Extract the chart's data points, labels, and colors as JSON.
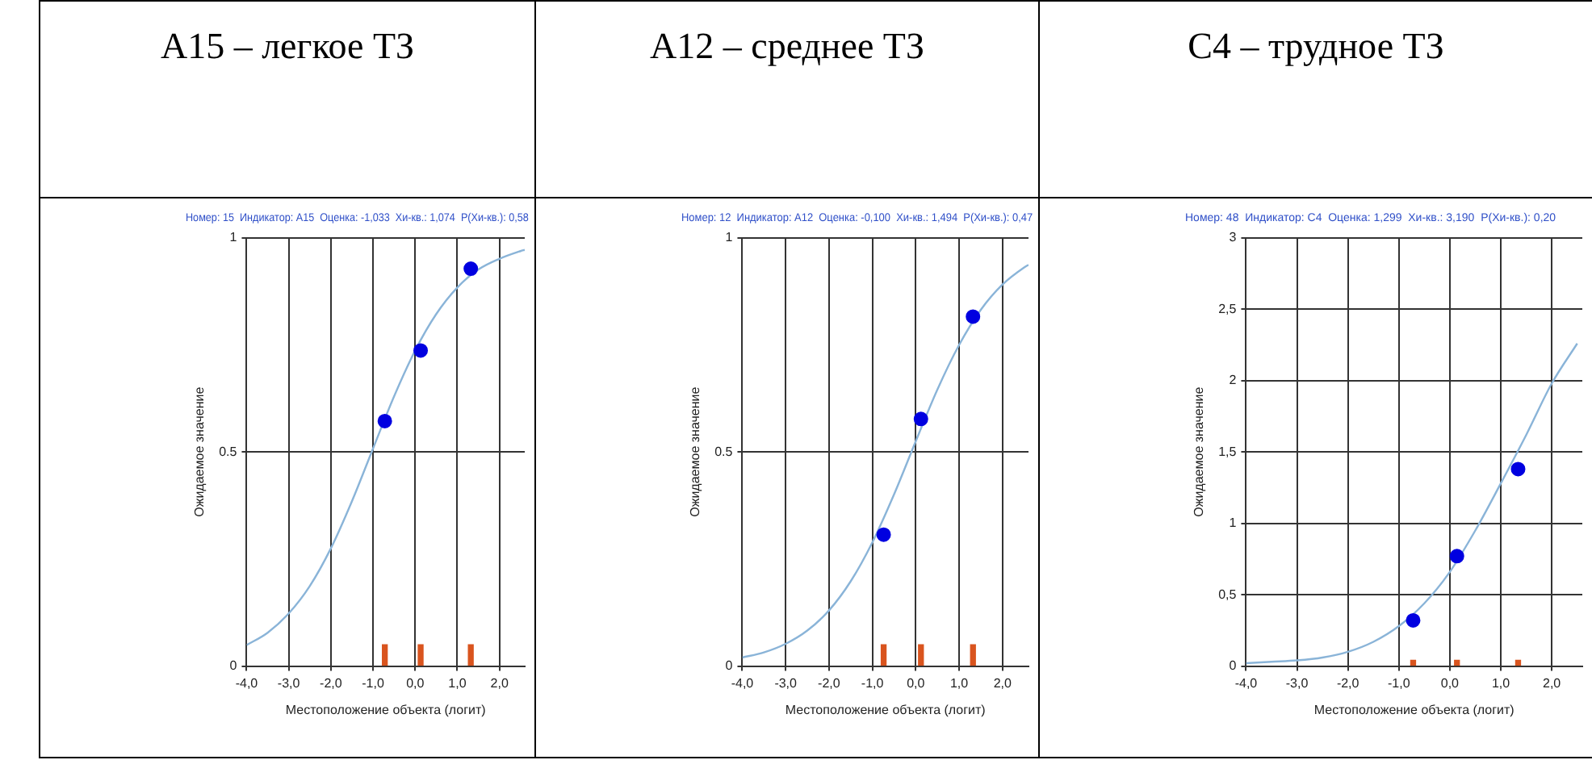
{
  "chart_data": [
    {
      "type": "line",
      "title": "A15 – легкое ТЗ",
      "subtitle": "Номер: 15  Индикатор: A15  Оценка: -1,033  Хи-кв.: 1,074  P(Хи-кв.): 0,58",
      "xlabel": "Местоположение объекта (логит)",
      "ylabel": "Ожидаемое значение",
      "xlim": [
        -4,
        2.6
      ],
      "xticks": [
        {
          "value": -4,
          "label": "-4,0"
        },
        {
          "value": -3,
          "label": "-3,0"
        },
        {
          "value": -2,
          "label": "-2,0"
        },
        {
          "value": -1,
          "label": "-1,0"
        },
        {
          "value": 0,
          "label": "0,0"
        },
        {
          "value": 1,
          "label": "1,0"
        },
        {
          "value": 2,
          "label": "2,0"
        }
      ],
      "ylim": [
        0,
        1
      ],
      "yticks": [
        0,
        0.5,
        1
      ],
      "grid": true,
      "legend": false,
      "series": [
        {
          "type": "line",
          "color": "#8ab4d8",
          "x": [
            -4,
            -3.5,
            -3,
            -2.5,
            -2,
            -1.5,
            -1,
            -0.5,
            0,
            0.5,
            1,
            1.5,
            2,
            2.5,
            2.6
          ],
          "values": [
            0.049,
            0.078,
            0.123,
            0.187,
            0.275,
            0.385,
            0.508,
            0.63,
            0.737,
            0.822,
            0.884,
            0.926,
            0.951,
            0.969,
            0.972
          ]
        },
        {
          "type": "scatter",
          "marker": "circle",
          "color": "#0000e0",
          "x": [
            -0.72,
            0.13,
            1.32
          ],
          "values": [
            0.572,
            0.737,
            0.928
          ]
        },
        {
          "type": "bar",
          "color": "#d9541e",
          "x": [
            -0.72,
            0.13,
            1.32
          ],
          "values": [
            0.05,
            0.05,
            0.05
          ]
        }
      ]
    },
    {
      "type": "line",
      "title": "A12 – среднее ТЗ",
      "subtitle": "Номер: 12  Индикатор: A12  Оценка: -0,100  Хи-кв.: 1,494  P(Хи-кв.): 0,47",
      "xlabel": "Местоположение объекта (логит)",
      "ylabel": "Ожидаемое значение",
      "xlim": [
        -4,
        2.6
      ],
      "xticks": [
        {
          "value": -4,
          "label": "-4,0"
        },
        {
          "value": -3,
          "label": "-3,0"
        },
        {
          "value": -2,
          "label": "-2,0"
        },
        {
          "value": -1,
          "label": "-1,0"
        },
        {
          "value": 0,
          "label": "0,0"
        },
        {
          "value": 1,
          "label": "1,0"
        },
        {
          "value": 2,
          "label": "2,0"
        }
      ],
      "ylim": [
        0,
        1
      ],
      "yticks": [
        0,
        0.5,
        1
      ],
      "grid": true,
      "legend": false,
      "series": [
        {
          "type": "line",
          "color": "#8ab4d8",
          "x": [
            -4,
            -3.5,
            -3,
            -2.5,
            -2,
            -1.5,
            -1,
            -0.5,
            0,
            0.5,
            1,
            1.5,
            2,
            2.5,
            2.6
          ],
          "values": [
            0.02,
            0.032,
            0.052,
            0.083,
            0.13,
            0.198,
            0.289,
            0.401,
            0.525,
            0.646,
            0.75,
            0.832,
            0.891,
            0.931,
            0.937
          ]
        },
        {
          "type": "scatter",
          "marker": "circle",
          "color": "#0000e0",
          "x": [
            -0.74,
            0.12,
            1.32
          ],
          "values": [
            0.307,
            0.577,
            0.816
          ]
        },
        {
          "type": "bar",
          "color": "#d9541e",
          "x": [
            -0.74,
            0.12,
            1.32
          ],
          "values": [
            0.05,
            0.05,
            0.05
          ]
        }
      ]
    },
    {
      "type": "line",
      "title": "C4 – трудное ТЗ",
      "subtitle": "Номер: 48  Индикатор: C4  Оценка: 1,299  Хи-кв.: 3,190  P(Хи-кв.): 0,20",
      "xlabel": "Местоположение объекта (логит)",
      "ylabel": "Ожидаемое значение",
      "xlim": [
        -4,
        2.6
      ],
      "xticks": [
        {
          "value": -4,
          "label": "-4,0"
        },
        {
          "value": -3,
          "label": "-3,0"
        },
        {
          "value": -2,
          "label": "-2,0"
        },
        {
          "value": -1,
          "label": "-1,0"
        },
        {
          "value": 0,
          "label": "0,0"
        },
        {
          "value": 1,
          "label": "1,0"
        },
        {
          "value": 2,
          "label": "2,0"
        }
      ],
      "ylim": [
        0,
        3
      ],
      "yticks": [
        0,
        {
          "value": 0.5,
          "label": "0,5"
        },
        1,
        {
          "value": 1.5,
          "label": "1,5"
        },
        2,
        {
          "value": 2.5,
          "label": "2,5"
        },
        3
      ],
      "grid": true,
      "legend": false,
      "series": [
        {
          "type": "line",
          "color": "#8ab4d8",
          "x": [
            -4,
            -3.5,
            -3,
            -2.5,
            -2,
            -1.5,
            -1,
            -0.5,
            0,
            0.5,
            1,
            1.5,
            2,
            2.5
          ],
          "values": [
            0.02,
            0.03,
            0.04,
            0.06,
            0.1,
            0.17,
            0.28,
            0.44,
            0.66,
            0.95,
            1.28,
            1.62,
            1.98,
            2.26
          ]
        },
        {
          "type": "scatter",
          "marker": "circle",
          "color": "#0000e0",
          "x": [
            -0.72,
            0.14,
            1.34
          ],
          "values": [
            0.32,
            0.77,
            1.38
          ]
        },
        {
          "type": "bar",
          "color": "#d9541e",
          "x": [
            -0.72,
            0.14,
            1.34
          ],
          "values": [
            0.04,
            0.04,
            0.04
          ]
        }
      ]
    }
  ]
}
